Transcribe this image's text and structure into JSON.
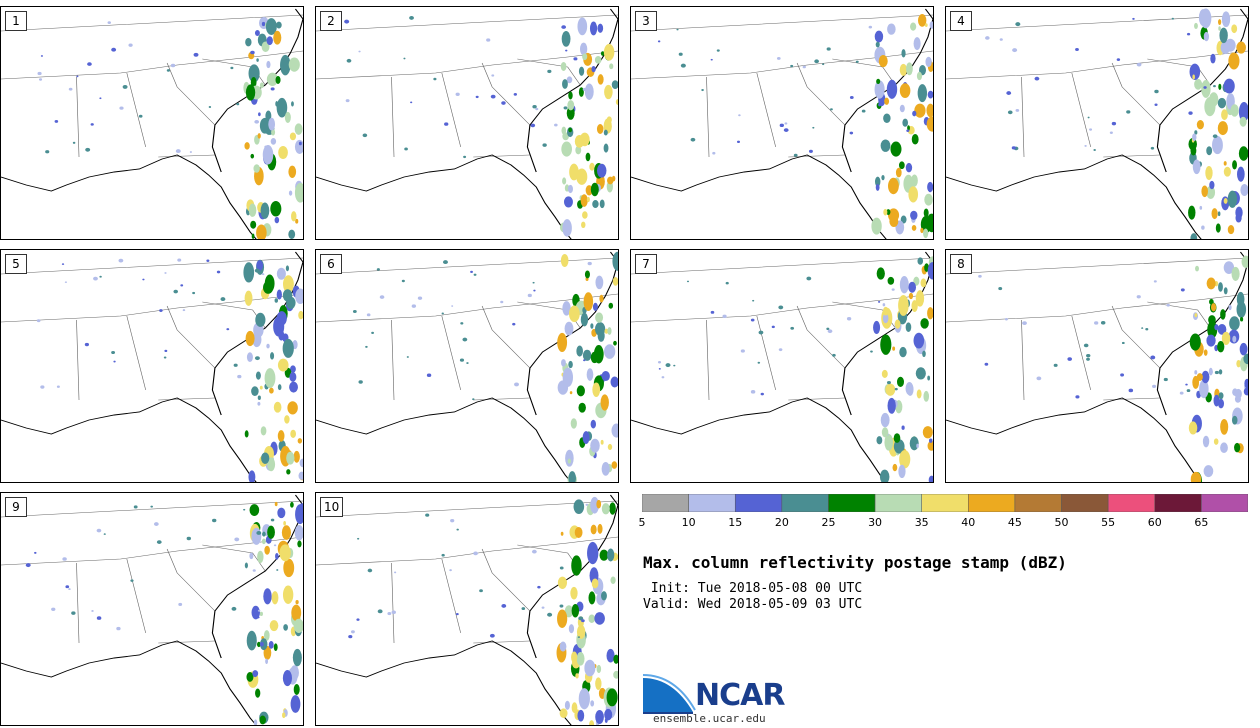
{
  "panels": [
    {
      "member": "1"
    },
    {
      "member": "2"
    },
    {
      "member": "3"
    },
    {
      "member": "4"
    },
    {
      "member": "5"
    },
    {
      "member": "6"
    },
    {
      "member": "7"
    },
    {
      "member": "8"
    },
    {
      "member": "9"
    },
    {
      "member": "10"
    }
  ],
  "colorbar": {
    "ticks": [
      "5",
      "10",
      "15",
      "20",
      "25",
      "30",
      "35",
      "40",
      "45",
      "50",
      "55",
      "60",
      "65"
    ],
    "colors": [
      "#a6a6a6",
      "#b3bdea",
      "#5563d4",
      "#4a8e92",
      "#008200",
      "#b8dcb4",
      "#f0de6a",
      "#ecaa20",
      "#b47a34",
      "#8a5838",
      "#ec507c",
      "#6c1838",
      "#b050a8"
    ]
  },
  "title": "Max. column reflectivity postage stamp (dBZ)",
  "init": " Init: Tue 2018-05-08 00 UTC",
  "valid": "Valid: Wed 2018-05-09 03 UTC",
  "logo_text": "NCAR",
  "site": "ensemble.ucar.edu"
}
